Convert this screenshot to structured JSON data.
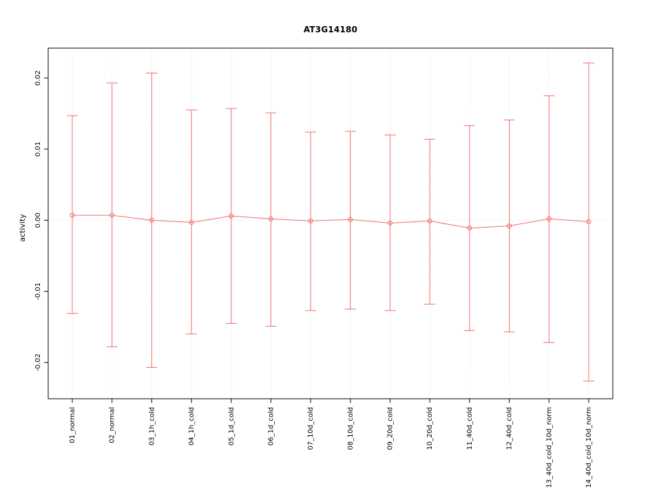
{
  "chart_data": {
    "type": "line",
    "title": "AT3G14180",
    "xlabel": "",
    "ylabel": "activity",
    "categories": [
      "01_normal",
      "02_normal",
      "03_1h_cold",
      "04_1h_cold",
      "05_1d_cold",
      "06_1d_cold",
      "07_10d_cold",
      "08_10d_cold",
      "09_20d_cold",
      "10_20d_cold",
      "11_40d_cold",
      "12_40d_cold",
      "13_40d_cold_10d_norm",
      "14_40d_cold_10d_norm"
    ],
    "series": [
      {
        "name": "activity",
        "values": [
          0.0007,
          0.0007,
          0.0,
          -0.0003,
          0.0006,
          0.0002,
          -0.0001,
          0.0001,
          -0.0004,
          -0.0001,
          -0.0011,
          -0.0008,
          0.0002,
          -0.0002
        ],
        "upper": [
          0.0147,
          0.0193,
          0.0207,
          0.0155,
          0.0157,
          0.0151,
          0.0124,
          0.0125,
          0.012,
          0.0114,
          0.0133,
          0.0141,
          0.0175,
          0.0221
        ],
        "lower": [
          -0.0131,
          -0.0178,
          -0.0207,
          -0.016,
          -0.0145,
          -0.0149,
          -0.0127,
          -0.0125,
          -0.0127,
          -0.0118,
          -0.0155,
          -0.0157,
          -0.0172,
          -0.0226
        ]
      }
    ],
    "ylim": [
      -0.0251,
      0.0242
    ],
    "yticks": [
      -0.02,
      -0.01,
      0.0,
      0.01,
      0.02
    ],
    "ytick_labels": [
      "-0.02",
      "-0.01",
      "0.00",
      "0.01",
      "0.02"
    ],
    "grid": {
      "vertical_dotted_at_each_category": true,
      "horizontal_dotted_at_zero": true
    },
    "legend": "none",
    "colors": {
      "series": "#f26c6c",
      "grid": "#d8d8d8",
      "box": "#000000",
      "text": "#000000"
    }
  }
}
